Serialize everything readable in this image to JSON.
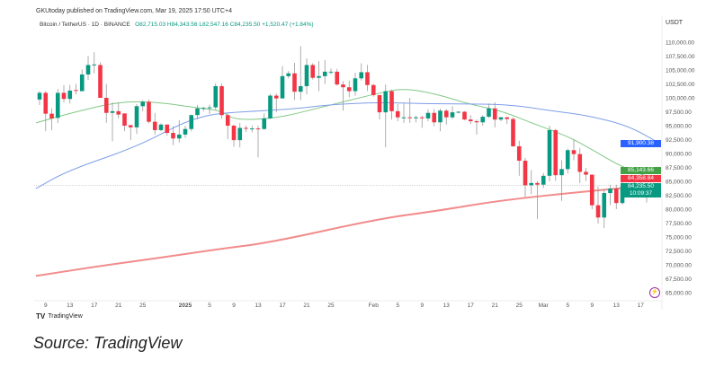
{
  "header": {
    "published": "GKUtoday published on TradingView.com, Mar 19, 2025 17:50 UTC+4",
    "symbol": "Bitcoin / TetherUS · 1D · BINANCE",
    "open": "O82,715.03",
    "high": "H84,343.56",
    "low": "L82,547.16",
    "close": "C84,235.50",
    "change": "+1,520.47 (+1.84%)"
  },
  "price_axis": {
    "currency": "USDT",
    "ticks": [
      "110,000.00",
      "107,500.00",
      "105,000.00",
      "102,500.00",
      "100,000.00",
      "97,500.00",
      "95,000.00",
      "92,500.00",
      "90,000.00",
      "87,500.00",
      "85,000.00",
      "82,500.00",
      "80,000.00",
      "77,500.00",
      "75,000.00",
      "72,500.00",
      "70,000.00",
      "67,500.00",
      "65,000.00"
    ],
    "labels": {
      "ma50": "91,900.38",
      "ma20": "85,143.66",
      "ma200": "84,358.84",
      "last": "84,235.50",
      "countdown": "10:09:37"
    }
  },
  "footer": {
    "brand": "TradingView",
    "source": "Source: TradingView"
  },
  "colors": {
    "up": "#089981",
    "down": "#f23645",
    "ma20": "#81c784",
    "ma50": "#7e9ee8",
    "ma200": "#f28b8b"
  },
  "chart_data": {
    "type": "candlestick",
    "title": "Bitcoin / TetherUS · 1D · BINANCE",
    "ylabel": "USDT",
    "ylim": [
      65000,
      110000
    ],
    "unit": "thousand USDT",
    "x_ticks": [
      {
        "day": 1,
        "label": "9"
      },
      {
        "day": 5,
        "label": "13"
      },
      {
        "day": 9,
        "label": "17"
      },
      {
        "day": 13,
        "label": "21"
      },
      {
        "day": 17,
        "label": "25"
      },
      {
        "day": 24,
        "label": "2025"
      },
      {
        "day": 28,
        "label": "5"
      },
      {
        "day": 32,
        "label": "9"
      },
      {
        "day": 36,
        "label": "13"
      },
      {
        "day": 40,
        "label": "17"
      },
      {
        "day": 44,
        "label": "21"
      },
      {
        "day": 48,
        "label": "25"
      },
      {
        "day": 55,
        "label": "Feb"
      },
      {
        "day": 59,
        "label": "5"
      },
      {
        "day": 63,
        "label": "9"
      },
      {
        "day": 67,
        "label": "13"
      },
      {
        "day": 71,
        "label": "17"
      },
      {
        "day": 75,
        "label": "21"
      },
      {
        "day": 79,
        "label": "25"
      },
      {
        "day": 83,
        "label": "Mar"
      },
      {
        "day": 87,
        "label": "5"
      },
      {
        "day": 91,
        "label": "9"
      },
      {
        "day": 95,
        "label": "13"
      },
      {
        "day": 99,
        "label": "17"
      }
    ],
    "ohlc": [
      [
        99.7,
        101.2,
        98.7,
        100.9
      ],
      [
        100.9,
        101.2,
        94.0,
        97.15
      ],
      [
        97.15,
        98.1,
        94.2,
        96.3
      ],
      [
        96.4,
        101.6,
        95.5,
        100.9
      ],
      [
        100.9,
        102.3,
        99.2,
        99.8
      ],
      [
        99.8,
        102.3,
        99.0,
        101.3
      ],
      [
        101.4,
        102.5,
        100.6,
        101.3
      ],
      [
        101.2,
        105.1,
        101.2,
        104.2
      ],
      [
        104.2,
        107.5,
        103.2,
        105.9
      ],
      [
        105.9,
        108.2,
        104.4,
        106.0
      ],
      [
        105.9,
        106.4,
        100.0,
        100.0
      ],
      [
        100.0,
        102.5,
        95.5,
        97.3
      ],
      [
        97.3,
        99.2,
        92.2,
        97.6
      ],
      [
        97.6,
        99.2,
        96.3,
        97.0
      ],
      [
        97.2,
        97.2,
        94.0,
        95.0
      ],
      [
        95.1,
        95.1,
        92.4,
        94.7
      ],
      [
        94.7,
        98.9,
        93.5,
        98.5
      ],
      [
        98.5,
        99.6,
        97.6,
        99.3
      ],
      [
        99.3,
        99.7,
        95.4,
        95.7
      ],
      [
        95.7,
        97.3,
        93.4,
        94.2
      ],
      [
        94.2,
        95.4,
        94.0,
        95.2
      ],
      [
        95.2,
        95.2,
        93.2,
        93.7
      ],
      [
        93.7,
        94.9,
        91.5,
        92.7
      ],
      [
        92.7,
        96.0,
        92.0,
        93.4
      ],
      [
        93.4,
        95.0,
        92.8,
        94.4
      ],
      [
        94.4,
        97.0,
        94.0,
        96.9
      ],
      [
        96.9,
        98.7,
        96.1,
        98.1
      ],
      [
        98.1,
        98.4,
        97.6,
        98.2
      ],
      [
        98.2,
        98.8,
        97.1,
        98.3
      ],
      [
        98.3,
        102.6,
        97.9,
        102.1
      ],
      [
        102.1,
        102.6,
        96.2,
        96.9
      ],
      [
        96.9,
        97.2,
        92.6,
        95.0
      ],
      [
        95.0,
        95.2,
        91.2,
        92.4
      ],
      [
        92.4,
        95.5,
        91.1,
        94.6
      ],
      [
        94.6,
        95.0,
        93.9,
        94.5
      ],
      [
        94.5,
        95.0,
        93.8,
        94.5
      ],
      [
        94.5,
        95.0,
        89.3,
        94.4
      ],
      [
        94.4,
        97.2,
        94.3,
        96.3
      ],
      [
        96.3,
        100.7,
        96.2,
        100.4
      ],
      [
        100.4,
        100.8,
        97.4,
        99.9
      ],
      [
        99.9,
        105.7,
        99.9,
        103.9
      ],
      [
        103.9,
        104.8,
        103.5,
        104.4
      ],
      [
        104.4,
        106.3,
        99.6,
        101.1
      ],
      [
        101.1,
        109.3,
        99.6,
        102.1
      ],
      [
        102.1,
        107.1,
        100.6,
        105.9
      ],
      [
        105.9,
        106.2,
        103.3,
        103.6
      ],
      [
        103.6,
        106.6,
        101.2,
        103.9
      ],
      [
        103.9,
        106.8,
        102.5,
        104.7
      ],
      [
        104.7,
        105.3,
        104.2,
        104.7
      ],
      [
        104.7,
        105.2,
        102.2,
        102.4
      ],
      [
        102.4,
        103.0,
        97.7,
        101.9
      ],
      [
        101.9,
        103.1,
        100.1,
        101.2
      ],
      [
        101.2,
        104.5,
        100.4,
        103.5
      ],
      [
        103.5,
        106.2,
        103.1,
        104.6
      ],
      [
        104.6,
        105.9,
        101.2,
        102.3
      ],
      [
        102.3,
        102.5,
        100.2,
        100.5
      ],
      [
        100.5,
        100.5,
        96.1,
        97.4
      ],
      [
        97.4,
        102.4,
        91.1,
        101.2
      ],
      [
        101.2,
        101.5,
        96.1,
        97.6
      ],
      [
        97.6,
        98.9,
        95.8,
        96.5
      ],
      [
        96.5,
        99.0,
        95.5,
        96.5
      ],
      [
        96.5,
        100.0,
        95.5,
        96.4
      ],
      [
        96.4,
        96.8,
        95.6,
        96.5
      ],
      [
        96.5,
        96.8,
        94.6,
        96.4
      ],
      [
        96.3,
        97.9,
        95.8,
        97.3
      ],
      [
        97.3,
        98.0,
        94.9,
        95.6
      ],
      [
        95.6,
        98.1,
        94.0,
        97.7
      ],
      [
        97.7,
        98.0,
        95.2,
        96.5
      ],
      [
        96.5,
        98.5,
        96.2,
        97.4
      ],
      [
        97.4,
        97.6,
        97.2,
        97.5
      ],
      [
        97.5,
        97.6,
        96.0,
        96.1
      ],
      [
        96.1,
        96.9,
        95.3,
        95.8
      ],
      [
        95.8,
        96.1,
        93.4,
        95.6
      ],
      [
        95.6,
        96.9,
        95.0,
        96.6
      ],
      [
        96.6,
        99.0,
        96.4,
        98.1
      ],
      [
        98.1,
        99.2,
        94.7,
        96.1
      ],
      [
        96.1,
        96.6,
        95.8,
        96.5
      ],
      [
        96.5,
        96.6,
        95.3,
        96.2
      ],
      [
        96.2,
        96.5,
        91.2,
        91.3
      ],
      [
        91.3,
        92.3,
        86.0,
        88.7
      ],
      [
        88.7,
        89.2,
        82.2,
        84.3
      ],
      [
        84.3,
        87.0,
        82.7,
        84.7
      ],
      [
        84.7,
        85.0,
        78.2,
        84.4
      ],
      [
        84.4,
        86.5,
        83.8,
        86.0
      ],
      [
        86.0,
        95.0,
        85.0,
        94.2
      ],
      [
        94.2,
        94.4,
        85.1,
        86.1
      ],
      [
        86.1,
        88.8,
        81.5,
        87.2
      ],
      [
        87.2,
        90.9,
        86.4,
        90.6
      ],
      [
        90.6,
        92.6,
        88.8,
        89.9
      ],
      [
        89.9,
        91.0,
        84.7,
        86.7
      ],
      [
        86.7,
        87.4,
        85.1,
        86.2
      ],
      [
        86.2,
        86.2,
        80.0,
        80.7
      ],
      [
        80.7,
        84.1,
        77.4,
        78.5
      ],
      [
        78.5,
        83.6,
        76.6,
        82.9
      ],
      [
        82.9,
        84.4,
        80.7,
        83.7
      ],
      [
        83.7,
        84.4,
        80.0,
        81.1
      ],
      [
        81.1,
        85.3,
        80.8,
        84.0
      ],
      [
        84.0,
        84.7,
        83.6,
        84.4
      ],
      [
        84.4,
        85.0,
        82.1,
        82.6
      ],
      [
        82.6,
        84.8,
        82.4,
        84.1
      ],
      [
        84.1,
        84.2,
        81.2,
        82.7
      ],
      [
        82.715,
        84.344,
        82.547,
        84.236
      ]
    ],
    "series": [
      {
        "name": "MA20",
        "points": [
          [
            -0.6,
            95.5
          ],
          [
            5.6,
            97.4
          ],
          [
            13,
            99.3
          ],
          [
            19,
            99.3
          ],
          [
            26,
            98.2
          ],
          [
            30,
            97.7
          ],
          [
            32,
            96.0
          ],
          [
            39,
            96.3
          ],
          [
            46,
            98.2
          ],
          [
            56,
            100.9
          ],
          [
            60,
            101.7
          ],
          [
            65,
            100.8
          ],
          [
            71,
            98.8
          ],
          [
            76,
            97.7
          ],
          [
            81,
            95.5
          ],
          [
            87,
            93.1
          ],
          [
            91,
            90.7
          ],
          [
            96,
            87.5
          ],
          [
            102,
            85.14
          ]
        ]
      },
      {
        "name": "MA50",
        "points": [
          [
            -0.6,
            83.7
          ],
          [
            4.6,
            86.9
          ],
          [
            16,
            91.2
          ],
          [
            23.5,
            95.5
          ],
          [
            28,
            97.0
          ],
          [
            32,
            97.4
          ],
          [
            42,
            98.0
          ],
          [
            48,
            98.8
          ],
          [
            56,
            99.2
          ],
          [
            65,
            98.9
          ],
          [
            77,
            98.9
          ],
          [
            84,
            97.7
          ],
          [
            90,
            96.9
          ],
          [
            97,
            95.0
          ],
          [
            102,
            91.9
          ]
        ]
      },
      {
        "name": "MA200",
        "points": [
          [
            -0.6,
            68.0
          ],
          [
            10,
            69.8
          ],
          [
            20,
            71.3
          ],
          [
            30,
            72.9
          ],
          [
            38,
            74.0
          ],
          [
            56,
            78.3
          ],
          [
            65,
            79.6
          ],
          [
            76,
            81.6
          ],
          [
            91,
            83.3
          ],
          [
            102,
            84.36
          ]
        ]
      }
    ]
  }
}
